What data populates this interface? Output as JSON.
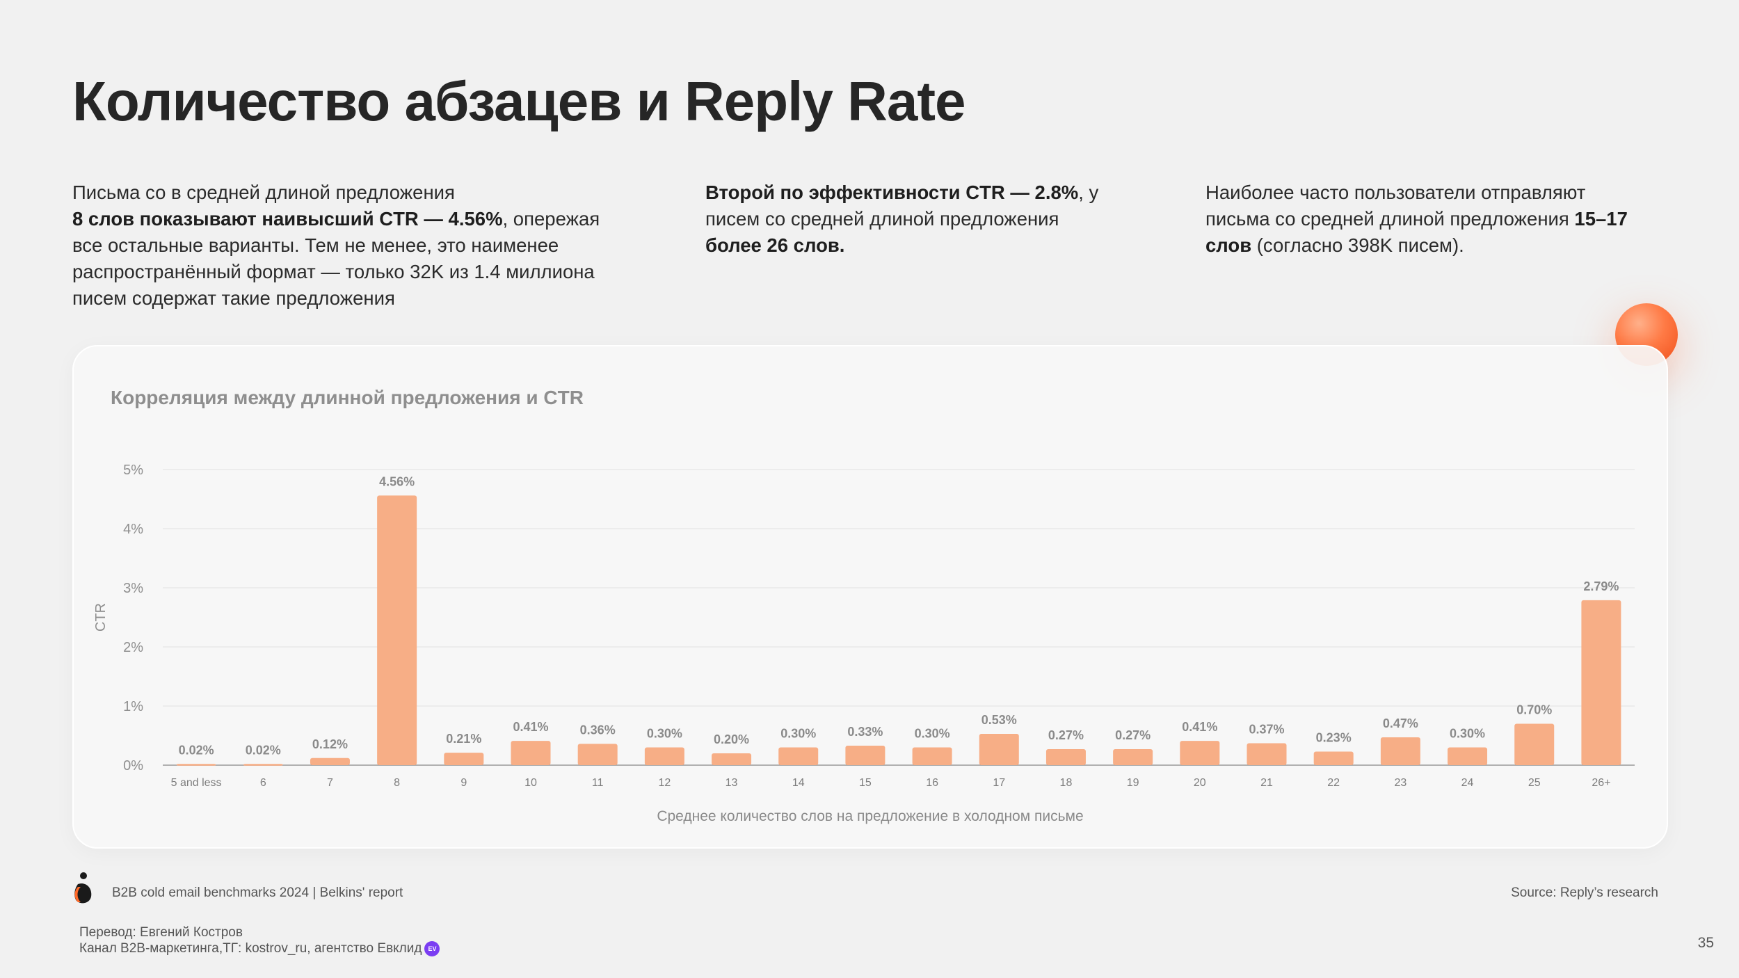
{
  "title": "Количество абзацев и Reply Rate",
  "paragraphs": [
    {
      "lines": [
        [
          {
            "text": "Письма со в средней длиной предложения",
            "bold": false
          }
        ],
        [
          {
            "text": "8 слов показывают наивысший CTR — 4.56%",
            "bold": true
          },
          {
            "text": ", опережая",
            "bold": false
          }
        ],
        [
          {
            "text": "все остальные варианты.  Тем не менее, это наименее",
            "bold": false
          }
        ],
        [
          {
            "text": "распространённый формат — только 32K из 1.4 миллиона",
            "bold": false
          }
        ],
        [
          {
            "text": "писем содержат такие предложения",
            "bold": false
          }
        ]
      ]
    },
    {
      "lines": [
        [
          {
            "text": "Второй по эффективности CTR — 2.8%",
            "bold": true
          },
          {
            "text": ", у",
            "bold": false
          }
        ],
        [
          {
            "text": "писем со средней длиной предложения",
            "bold": false
          }
        ],
        [
          {
            "text": "более 26 слов.",
            "bold": true
          }
        ]
      ]
    },
    {
      "lines": [
        [
          {
            "text": "Наиболее часто пользователи отправляют",
            "bold": false
          }
        ],
        [
          {
            "text": "письма со средней длиной предложения ",
            "bold": false
          },
          {
            "text": "15–17",
            "bold": true
          }
        ],
        [
          {
            "text": "слов",
            "bold": true
          },
          {
            "text": " (согласно 398K писем).",
            "bold": false
          }
        ]
      ]
    }
  ],
  "chart_data": {
    "type": "bar",
    "title": "Корреляция между длинной предложения и CTR",
    "xlabel": "Среднее количество слов на предложение в холодном письме",
    "ylabel": "CTR",
    "ylim": [
      0,
      5
    ],
    "yticks": [
      "0%",
      "1%",
      "2%",
      "3%",
      "4%",
      "5%"
    ],
    "grid": true,
    "categories": [
      "5 and less",
      "6",
      "7",
      "8",
      "9",
      "10",
      "11",
      "12",
      "13",
      "14",
      "15",
      "16",
      "17",
      "18",
      "19",
      "20",
      "21",
      "22",
      "23",
      "24",
      "25",
      "26+"
    ],
    "values": [
      0.02,
      0.02,
      0.12,
      4.56,
      0.21,
      0.41,
      0.36,
      0.3,
      0.2,
      0.3,
      0.33,
      0.3,
      0.53,
      0.27,
      0.27,
      0.41,
      0.37,
      0.23,
      0.47,
      0.3,
      0.7,
      2.79
    ],
    "labels": [
      "0.02%",
      "0.02%",
      "0.12%",
      "4.56%",
      "0.21%",
      "0.41%",
      "0.36%",
      "0.30%",
      "0.20%",
      "0.30%",
      "0.33%",
      "0.30%",
      "0.53%",
      "0.27%",
      "0.27%",
      "0.41%",
      "0.37%",
      "0.23%",
      "0.47%",
      "0.30%",
      "0.70%",
      "2.79%"
    ],
    "bar_color": "#f7ae86"
  },
  "footer": {
    "report": "B2B cold email benchmarks 2024 | Belkins' report",
    "source": "Source: Reply’s research",
    "translation_line1": "Перевод: Евгений Костров",
    "translation_line2": "Канал B2B-маркетинга,ТГ: kostrov_ru, агентство Евклид",
    "badge": "EV"
  },
  "page_number": "35"
}
